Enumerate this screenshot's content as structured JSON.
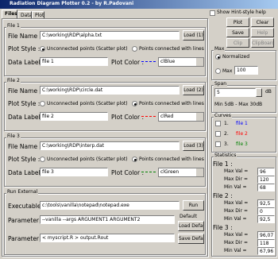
{
  "window_title": "Radiation Diagram Plotter 0.2 - by R.Padovani",
  "show_hint": "Show Hint-style help",
  "tabs": [
    "Files",
    "Data",
    "Plot"
  ],
  "buttons": [
    "Plot",
    "Clear",
    "Save",
    "Help",
    "Clip",
    "ClipBoard"
  ],
  "files": [
    {
      "group": "File 1",
      "file_name_label": "File Name :",
      "file_name": "C:\\working\\RDP\\alpha.txt",
      "load": "Load (1)",
      "plot_style_label": "Plot Style :",
      "style_scatter": "Unconnected points (Scatter plot)",
      "style_lines": "Points connected with lines",
      "data_label_label": "Data Label :",
      "data_label": "file 1",
      "plot_color_label": "Plot Color :",
      "plot_color": "clBlue"
    },
    {
      "group": "File 2",
      "file_name_label": "File Name :",
      "file_name": "C:\\working\\RDP\\circle.dat",
      "load": "Load (2)",
      "plot_style_label": "Plot Style :",
      "style_scatter": "Unconnected points (Scatter plot)",
      "style_lines": "Points connected with lines",
      "data_label_label": "Data Label :",
      "data_label": "file 2",
      "plot_color_label": "Plot Color :",
      "plot_color": "clRed"
    },
    {
      "group": "File 3",
      "file_name_label": "File Name :",
      "file_name": "C:\\working\\RDP\\interp.dat",
      "load": "Load (3)",
      "plot_style_label": "Plot Style :",
      "style_scatter": "Unconnected points (Scatter plot)",
      "style_lines": "Points connected with lines",
      "data_label_label": "Data Label :",
      "data_label": "file 3",
      "plot_color_label": "Plot Color :",
      "plot_color": "clGreen"
    }
  ],
  "run_external": {
    "group": "Run External",
    "executable_label": "Executable :",
    "executable": "c:\\tools\\vanilla\\notepad\\notepad.exe",
    "run": "Run",
    "param1_label": "Parameter 1 :",
    "param1": "--vanilla --args ARGUMENT1 ARGUMENT2",
    "default": "Default",
    "load_default": "Load Default",
    "param2_label": "Parameter 2 :",
    "param2": "< myscript.R > output.Rout",
    "save_default": "Save Default"
  },
  "max": {
    "group": "Max",
    "normalized": "Normalized",
    "max": "Max",
    "value": "100"
  },
  "span": {
    "group": "Span",
    "value": "5",
    "unit": "dB",
    "range": "Min 5dB - Max 30dB"
  },
  "curves": {
    "group": "Curves",
    "items": [
      {
        "num": "1.",
        "label": "file 1"
      },
      {
        "num": "2.",
        "label": "file 2"
      },
      {
        "num": "3.",
        "label": "file 3"
      }
    ]
  },
  "statistics": {
    "group": "Statistics",
    "files": [
      {
        "label": "File 1 :",
        "rows": [
          {
            "label": "Max Val =",
            "value": "96"
          },
          {
            "label": "Max Dir =",
            "value": "120"
          },
          {
            "label": "Min Val =",
            "value": "68"
          }
        ]
      },
      {
        "label": "File 2 :",
        "rows": [
          {
            "label": "Max Val =",
            "value": "92,5"
          },
          {
            "label": "Max Dir =",
            "value": "0"
          },
          {
            "label": "Min Val =",
            "value": "92,5"
          }
        ]
      },
      {
        "label": "File 3 :",
        "rows": [
          {
            "label": "Max Val =",
            "value": "96,07"
          },
          {
            "label": "Max Dir =",
            "value": "118"
          },
          {
            "label": "Min Val =",
            "value": "67,96"
          }
        ]
      }
    ]
  }
}
